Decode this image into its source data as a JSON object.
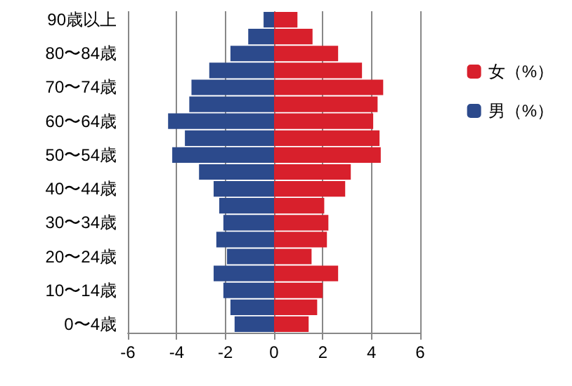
{
  "chart_data": {
    "type": "bar",
    "orientation": "horizontal",
    "categories": [
      "90歳以上",
      null,
      "80〜84歳",
      null,
      "70〜74歳",
      null,
      "60〜64歳",
      null,
      "50〜54歳",
      null,
      "40〜44歳",
      null,
      "30〜34歳",
      null,
      "20〜24歳",
      null,
      "10〜14歳",
      null,
      "0〜4歳"
    ],
    "series": [
      {
        "name": "女（%）",
        "color": "#d8202c",
        "values": [
          0.96,
          1.58,
          2.63,
          3.61,
          4.48,
          4.25,
          4.07,
          4.33,
          4.38,
          3.15,
          2.92,
          2.06,
          2.23,
          2.17,
          1.54,
          2.63,
          2.0,
          1.77,
          1.42
        ]
      },
      {
        "name": "男（%）",
        "color": "#2c4a8c",
        "values": [
          -0.43,
          -1.06,
          -1.79,
          -2.66,
          -3.39,
          -3.48,
          -4.35,
          -3.66,
          -4.18,
          -3.08,
          -2.48,
          -2.25,
          -2.08,
          -2.37,
          -1.93,
          -2.48,
          -2.08,
          -1.79,
          -1.62
        ]
      }
    ],
    "xlim": [
      -6,
      6
    ],
    "xticks": [
      -6,
      -4,
      -2,
      0,
      2,
      4,
      6
    ],
    "stacked": true,
    "grid": "x",
    "legend": "right"
  }
}
